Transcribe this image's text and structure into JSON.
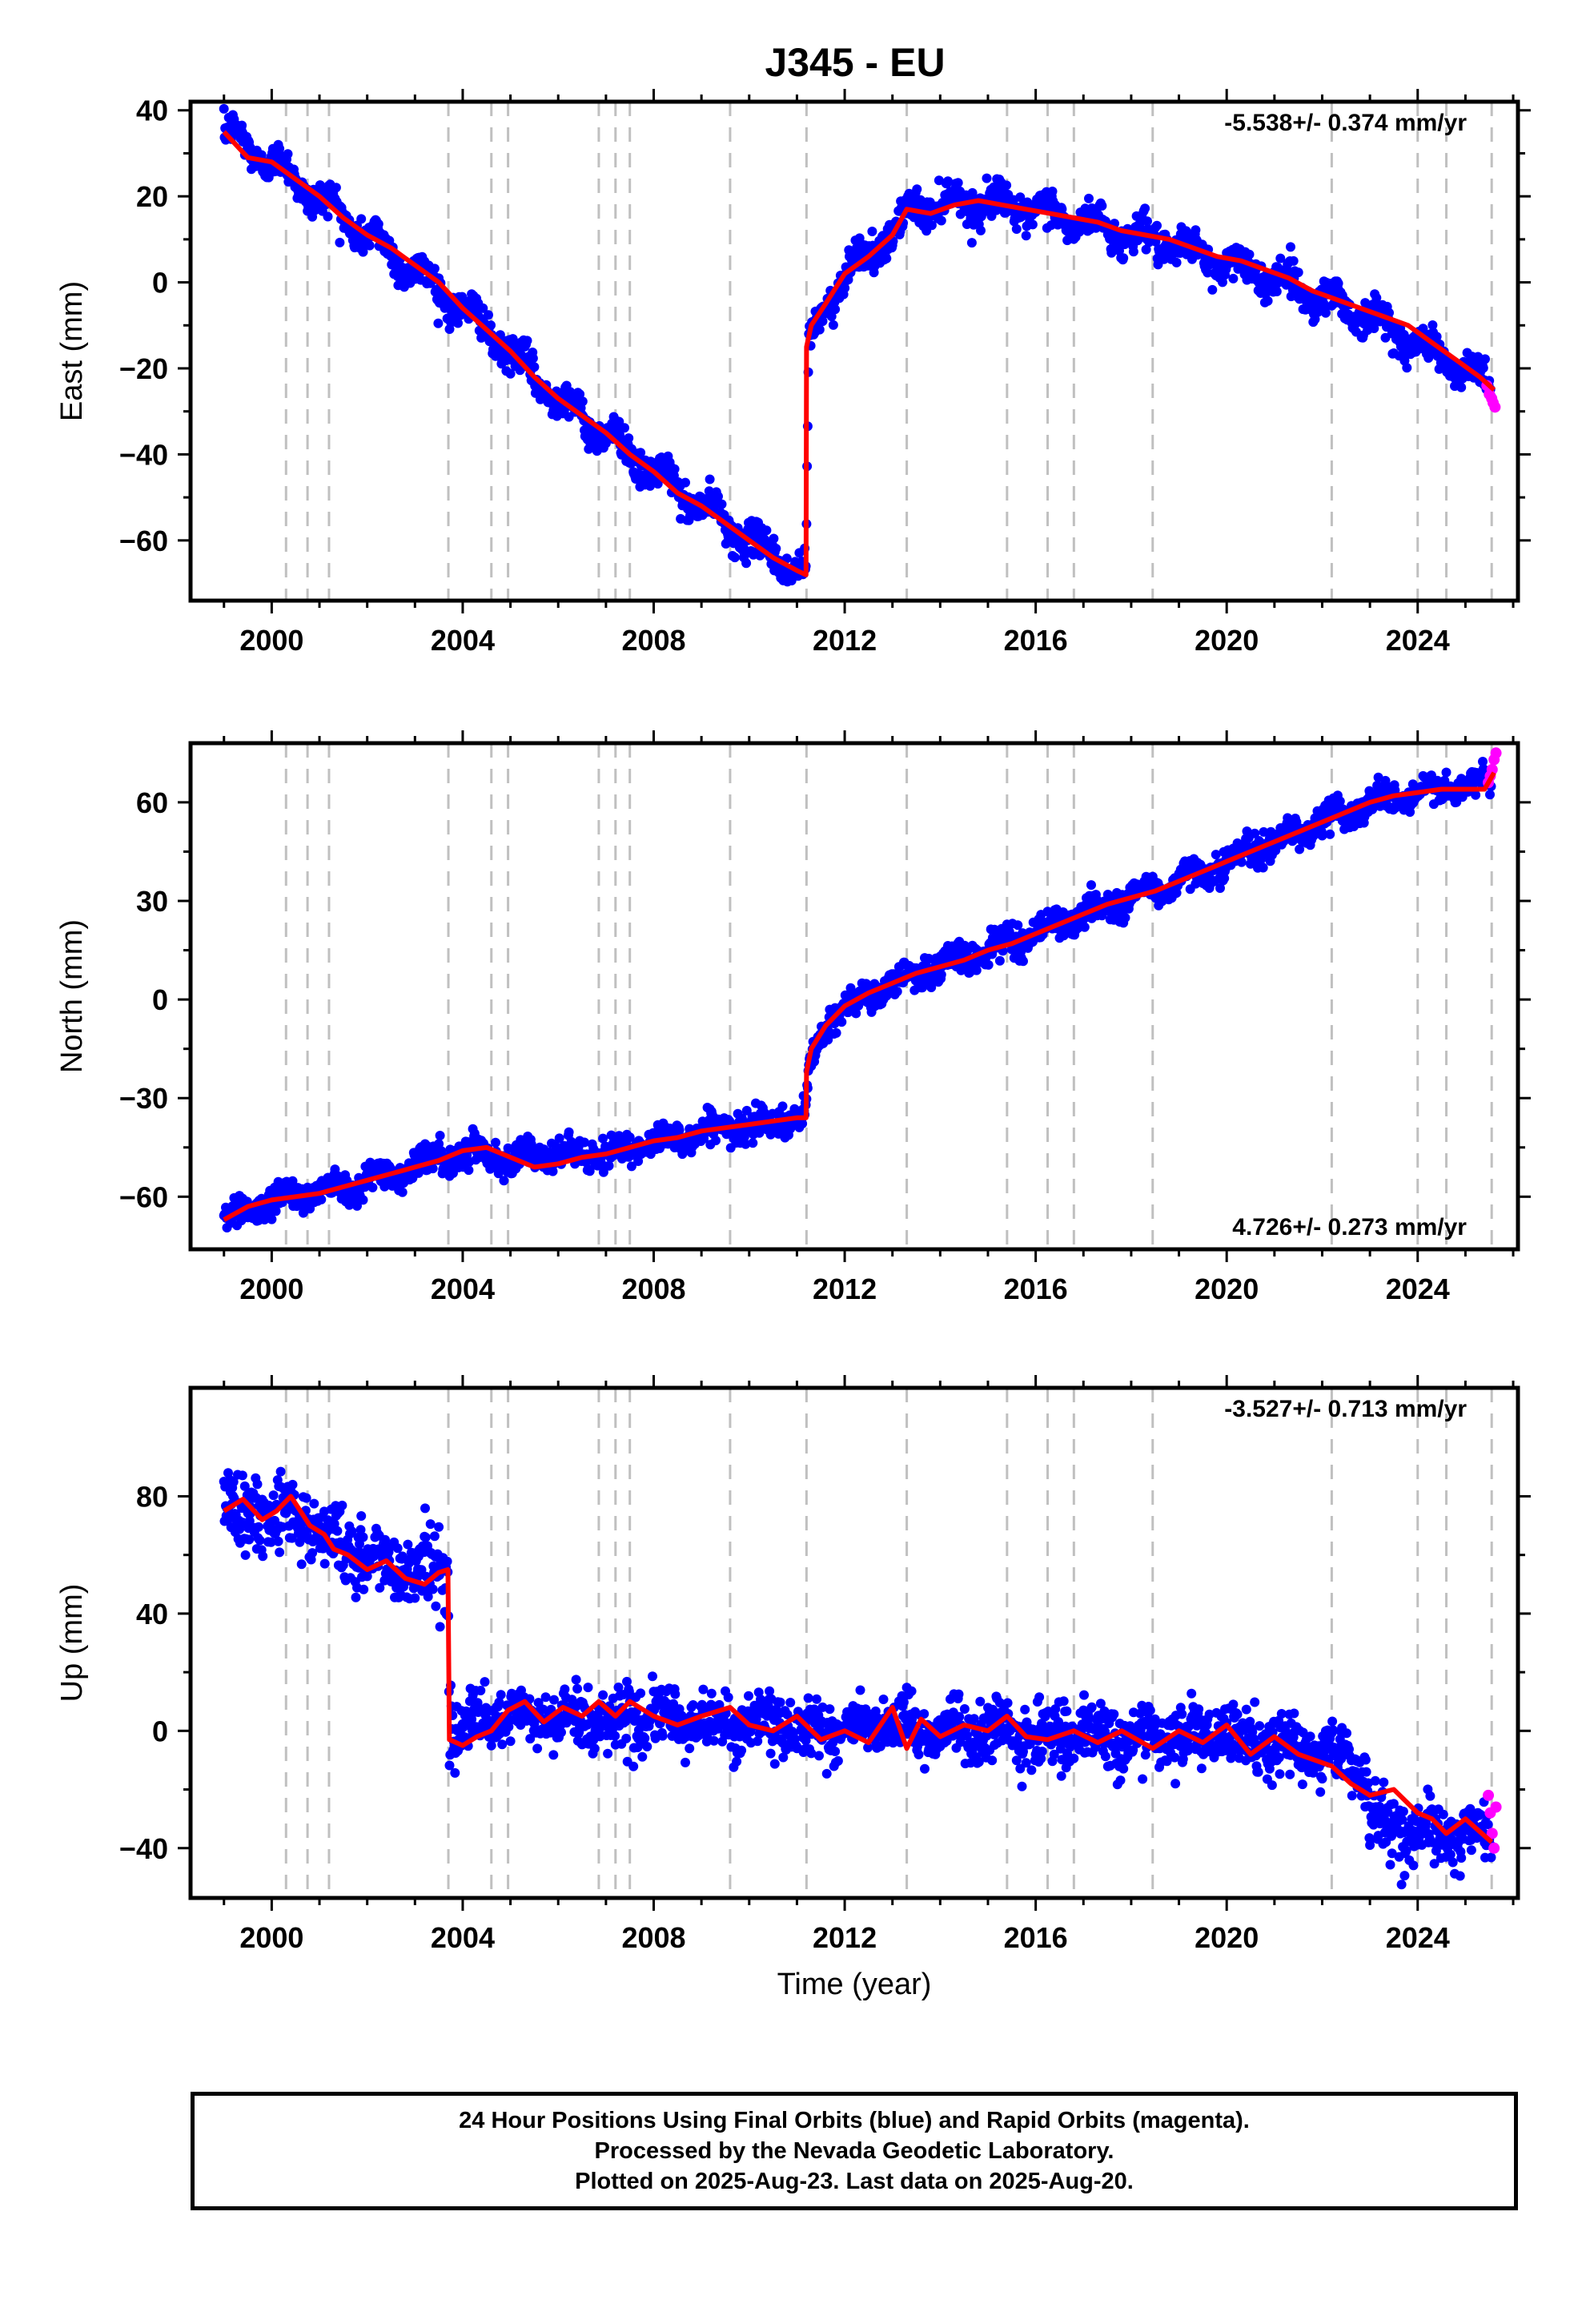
{
  "title": "J345 - EU",
  "footer": {
    "line1": "24 Hour Positions Using Final Orbits (blue) and Rapid Orbits (magenta).",
    "line2": "Processed by the Nevada Geodetic Laboratory.",
    "line3": "Plotted on 2025-Aug-23. Last data on 2025-Aug-20."
  },
  "colors": {
    "final": "#0000ff",
    "rapid": "#ff00ff",
    "model": "#ff0000",
    "steps": "#c0c0c0"
  },
  "chart_data": [
    {
      "type": "scatter",
      "panel": "east",
      "ylabel": "East (mm)",
      "xlabel": "",
      "rate": "-5.538+/- 0.374 mm/yr",
      "rate_position": "top-right",
      "xlim": [
        1998.3,
        2026.1
      ],
      "ylim": [
        -74,
        42
      ],
      "xticks": [
        2000,
        2004,
        2008,
        2012,
        2016,
        2020,
        2024
      ],
      "yticks": [
        40,
        20,
        0,
        -20,
        -40,
        -60
      ],
      "grid": false,
      "step_epochs": [
        2000.3,
        2000.75,
        2001.2,
        2003.7,
        2004.6,
        2004.95,
        2006.85,
        2007.2,
        2007.5,
        2009.6,
        2011.2,
        2013.3,
        2015.4,
        2016.25,
        2016.8,
        2018.45,
        2022.2,
        2024.0,
        2024.6,
        2025.55
      ],
      "model": {
        "x": [
          1999.0,
          1999.5,
          2000.0,
          2000.5,
          2001.0,
          2001.5,
          2002.0,
          2002.5,
          2003.0,
          2003.5,
          2004.0,
          2004.5,
          2005.0,
          2005.5,
          2006.0,
          2006.5,
          2007.0,
          2007.5,
          2008.0,
          2008.5,
          2009.0,
          2009.5,
          2010.0,
          2010.5,
          2011.0,
          2011.19,
          2011.2,
          2011.3,
          2011.6,
          2012.0,
          2012.5,
          2013.0,
          2013.3,
          2013.8,
          2014.3,
          2014.8,
          2015.3,
          2015.8,
          2016.3,
          2016.8,
          2017.3,
          2017.8,
          2018.3,
          2018.8,
          2019.3,
          2019.8,
          2020.3,
          2020.8,
          2021.3,
          2021.8,
          2022.3,
          2022.8,
          2023.3,
          2023.8,
          2024.3,
          2024.8,
          2025.3,
          2025.6
        ],
        "y": [
          35,
          29,
          28,
          24,
          20,
          15,
          11,
          8,
          4,
          0,
          -6,
          -11,
          -16,
          -22,
          -27,
          -31,
          -35,
          -40,
          -44,
          -49,
          -52,
          -56,
          -60,
          -64,
          -67,
          -68,
          -15,
          -10,
          -5,
          2,
          6,
          11,
          17,
          16,
          18,
          19,
          18,
          17,
          16,
          15,
          14,
          12,
          11,
          10,
          8,
          6,
          5,
          3,
          1,
          -2,
          -4,
          -6,
          -8,
          -10,
          -14,
          -18,
          -22,
          -25
        ]
      },
      "data_envelope": {
        "x": [
          1999.0,
          2000.0,
          2002.0,
          2004.0,
          2006.0,
          2008.0,
          2010.0,
          2011.19,
          2011.25,
          2011.6,
          2012.0,
          2013.0,
          2013.5,
          2015.0,
          2017.0,
          2019.0,
          2021.0,
          2023.0,
          2025.55
        ],
        "y": [
          35,
          28,
          11,
          -6,
          -27,
          -44,
          -60,
          -68,
          -15,
          -5,
          2,
          11,
          18,
          19,
          14,
          8,
          1,
          -8,
          -24
        ],
        "spread": 3.5
      },
      "rapid_points": {
        "x": [
          2025.45,
          2025.5,
          2025.55,
          2025.58,
          2025.62
        ],
        "y": [
          -24,
          -26,
          -27,
          -28,
          -29
        ]
      }
    },
    {
      "type": "scatter",
      "panel": "north",
      "ylabel": "North (mm)",
      "xlabel": "",
      "rate": "4.726+/- 0.273 mm/yr",
      "rate_position": "bottom-right",
      "xlim": [
        1998.3,
        2026.1
      ],
      "ylim": [
        -76,
        78
      ],
      "xticks": [
        2000,
        2004,
        2008,
        2012,
        2016,
        2020,
        2024
      ],
      "yticks": [
        60,
        30,
        0,
        -30,
        -60
      ],
      "grid": false,
      "step_epochs": [
        2000.3,
        2000.75,
        2001.2,
        2003.7,
        2004.6,
        2004.95,
        2006.85,
        2007.2,
        2007.5,
        2009.6,
        2011.2,
        2013.3,
        2015.4,
        2016.25,
        2016.8,
        2018.45,
        2022.2,
        2024.0,
        2024.6,
        2025.55
      ],
      "model": {
        "x": [
          1999.0,
          1999.5,
          2000.0,
          2000.5,
          2001.0,
          2001.5,
          2002.0,
          2002.5,
          2003.0,
          2003.5,
          2004.0,
          2004.5,
          2005.0,
          2005.5,
          2006.0,
          2006.5,
          2007.0,
          2007.5,
          2008.0,
          2008.5,
          2009.0,
          2009.5,
          2010.0,
          2010.5,
          2011.0,
          2011.19,
          2011.2,
          2011.3,
          2011.6,
          2012.0,
          2012.5,
          2013.0,
          2013.5,
          2014.0,
          2014.5,
          2015.0,
          2015.5,
          2016.0,
          2016.5,
          2017.0,
          2017.5,
          2018.0,
          2018.5,
          2019.0,
          2019.5,
          2020.0,
          2020.5,
          2021.0,
          2021.5,
          2022.0,
          2022.5,
          2023.0,
          2023.5,
          2024.0,
          2024.5,
          2025.0,
          2025.4,
          2025.6
        ],
        "y": [
          -67,
          -63,
          -61,
          -60,
          -59,
          -57,
          -55,
          -53,
          -51,
          -49,
          -46,
          -45,
          -48,
          -51,
          -50,
          -48,
          -47,
          -45,
          -43,
          -42,
          -40,
          -39,
          -38,
          -37,
          -36,
          -36,
          -22,
          -15,
          -8,
          -2,
          2,
          5,
          8,
          10,
          12,
          15,
          17,
          20,
          23,
          26,
          29,
          31,
          33,
          36,
          39,
          42,
          45,
          48,
          51,
          54,
          57,
          60,
          62,
          63,
          64,
          64,
          64,
          69
        ]
      },
      "data_envelope": {
        "x": [
          1999.0,
          2000.0,
          2002.0,
          2004.0,
          2005.0,
          2007.0,
          2009.0,
          2011.19,
          2011.25,
          2011.6,
          2012.0,
          2013.5,
          2015.0,
          2017.0,
          2019.0,
          2021.0,
          2023.0,
          2024.5,
          2025.55
        ],
        "y": [
          -67,
          -61,
          -55,
          -46,
          -48,
          -47,
          -40,
          -36,
          -22,
          -8,
          -2,
          8,
          15,
          26,
          36,
          48,
          60,
          64,
          66
        ],
        "spread": 4
      },
      "rapid_points": {
        "x": [
          2025.48,
          2025.52,
          2025.56,
          2025.6,
          2025.64
        ],
        "y": [
          66,
          68,
          70,
          73,
          75
        ]
      }
    },
    {
      "type": "scatter",
      "panel": "up",
      "ylabel": "Up (mm)",
      "xlabel": "Time (year)",
      "rate": "-3.527+/- 0.713 mm/yr",
      "rate_position": "top-right",
      "xlim": [
        1998.3,
        2026.1
      ],
      "ylim": [
        -57,
        117
      ],
      "xticks": [
        2000,
        2004,
        2008,
        2012,
        2016,
        2020,
        2024
      ],
      "yticks": [
        80,
        40,
        0,
        -40
      ],
      "grid": false,
      "step_epochs": [
        2000.3,
        2000.75,
        2001.2,
        2003.7,
        2004.6,
        2004.95,
        2006.85,
        2007.2,
        2007.5,
        2009.6,
        2011.2,
        2013.3,
        2015.4,
        2016.25,
        2016.8,
        2018.45,
        2022.2,
        2024.0,
        2024.6,
        2025.55
      ],
      "model": {
        "x": [
          1999.0,
          1999.4,
          1999.8,
          2000.1,
          2000.4,
          2000.8,
          2001.1,
          2001.3,
          2001.6,
          2002.0,
          2002.4,
          2002.8,
          2003.2,
          2003.5,
          2003.69,
          2003.72,
          2004.0,
          2004.3,
          2004.6,
          2004.95,
          2005.3,
          2005.7,
          2006.1,
          2006.5,
          2006.85,
          2007.2,
          2007.5,
          2008.0,
          2008.5,
          2009.0,
          2009.6,
          2010.0,
          2010.5,
          2011.0,
          2011.5,
          2012.0,
          2012.5,
          2013.0,
          2013.3,
          2013.6,
          2014.0,
          2014.5,
          2015.0,
          2015.4,
          2015.8,
          2016.25,
          2016.8,
          2017.3,
          2017.8,
          2018.45,
          2019.0,
          2019.5,
          2020.0,
          2020.5,
          2021.0,
          2021.5,
          2022.2,
          2022.6,
          2023.0,
          2023.5,
          2024.0,
          2024.3,
          2024.6,
          2025.0,
          2025.55
        ],
        "y": [
          75,
          79,
          72,
          75,
          80,
          70,
          67,
          62,
          60,
          55,
          58,
          52,
          50,
          54,
          55,
          -3,
          -5,
          -2,
          0,
          7,
          10,
          3,
          8,
          5,
          10,
          5,
          10,
          5,
          2,
          5,
          8,
          2,
          0,
          5,
          -3,
          0,
          -4,
          8,
          -6,
          4,
          -2,
          2,
          0,
          5,
          -2,
          -3,
          0,
          -4,
          0,
          -6,
          0,
          -4,
          2,
          -8,
          -2,
          -8,
          -12,
          -18,
          -22,
          -20,
          -28,
          -30,
          -35,
          -30,
          -38
        ]
      },
      "data_envelope": {
        "x": [
          1999.0,
          2000.5,
          2002.0,
          2003.69,
          2003.72,
          2005.0,
          2008.0,
          2011.0,
          2014.0,
          2017.0,
          2020.0,
          2022.2,
          2022.9,
          2023.0,
          2024.0,
          2025.55
        ],
        "y": [
          76,
          74,
          58,
          55,
          0,
          4,
          4,
          1,
          0,
          -2,
          -2,
          -8,
          -12,
          -30,
          -35,
          -35
        ],
        "spread": 9
      },
      "rapid_points": {
        "x": [
          2025.48,
          2025.52,
          2025.56,
          2025.6,
          2025.64
        ],
        "y": [
          -22,
          -28,
          -35,
          -40,
          -26
        ]
      }
    }
  ]
}
